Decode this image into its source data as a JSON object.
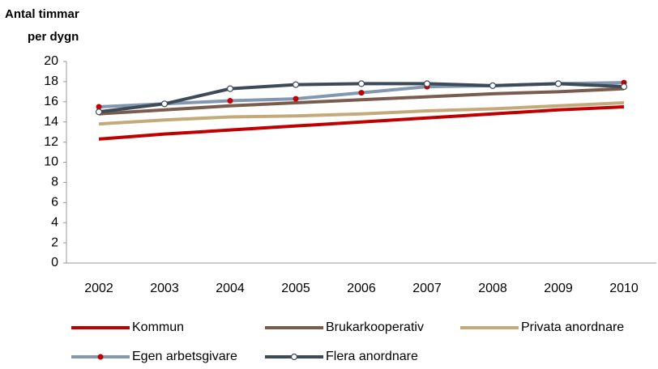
{
  "chart_data": {
    "type": "line",
    "y_label": [
      "Antal timmar",
      "per dygn"
    ],
    "categories": [
      "2002",
      "2003",
      "2004",
      "2005",
      "2006",
      "2007",
      "2008",
      "2009",
      "2010"
    ],
    "series": [
      {
        "name": "Kommun",
        "color": "#c00000",
        "values": [
          12.3,
          12.8,
          13.2,
          13.6,
          14.0,
          14.4,
          14.8,
          15.2,
          15.5
        ]
      },
      {
        "name": "Brukarkooperativ",
        "color": "#7a5c4f",
        "values": [
          14.8,
          15.2,
          15.6,
          15.9,
          16.2,
          16.5,
          16.8,
          17.0,
          17.3
        ]
      },
      {
        "name": "Privata anordnare",
        "color": "#c4a97a",
        "values": [
          13.8,
          14.2,
          14.5,
          14.6,
          14.8,
          15.1,
          15.3,
          15.6,
          15.9
        ]
      },
      {
        "name": "Egen arbetsgivare",
        "color": "#8497b0",
        "marker_fill": "#c00000",
        "values": [
          15.5,
          15.8,
          16.1,
          16.3,
          16.9,
          17.5,
          17.6,
          17.8,
          17.9
        ]
      },
      {
        "name": "Flera anordnare",
        "color": "#3d4a5a",
        "marker_fill": "#ffffff",
        "values": [
          15.0,
          15.8,
          17.3,
          17.7,
          17.8,
          17.8,
          17.6,
          17.8,
          17.5
        ]
      }
    ],
    "ylim": [
      0,
      20
    ],
    "yticks": [
      0,
      2,
      4,
      6,
      8,
      10,
      12,
      14,
      16,
      18,
      20
    ],
    "grid": false
  }
}
